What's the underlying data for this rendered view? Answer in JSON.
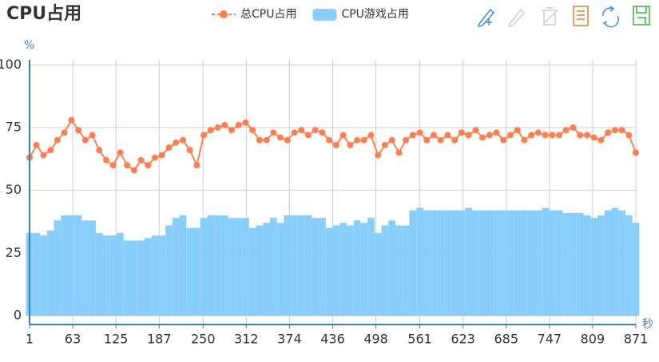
{
  "chart_data": {
    "type": "combo",
    "title": "CPU占用",
    "y_label": "%",
    "x_label": "秒",
    "x": [
      1,
      11,
      21,
      31,
      41,
      51,
      61,
      71,
      81,
      91,
      101,
      111,
      121,
      131,
      141,
      151,
      161,
      171,
      181,
      191,
      201,
      211,
      221,
      231,
      241,
      251,
      261,
      271,
      281,
      291,
      301,
      311,
      321,
      331,
      341,
      351,
      361,
      371,
      381,
      391,
      401,
      411,
      421,
      431,
      441,
      451,
      461,
      471,
      481,
      491,
      501,
      511,
      521,
      531,
      541,
      551,
      561,
      571,
      581,
      591,
      601,
      611,
      621,
      631,
      641,
      651,
      661,
      671,
      681,
      691,
      701,
      711,
      721,
      731,
      741,
      751,
      761,
      771,
      781,
      791,
      801,
      811,
      821,
      831,
      841,
      851,
      861,
      871
    ],
    "xlim": [
      1,
      871
    ],
    "xticks": [
      1,
      63,
      125,
      187,
      250,
      312,
      374,
      436,
      498,
      561,
      623,
      685,
      747,
      809,
      871
    ],
    "ylim": [
      -3.5,
      102
    ],
    "yticks": [
      0,
      25,
      50,
      75,
      100
    ],
    "grid": true,
    "legend": "top",
    "series": [
      {
        "name": "总CPU占用",
        "type": "line",
        "color": "#ff7f50",
        "values": [
          63,
          68,
          64,
          66,
          70,
          73,
          78,
          74,
          70,
          72,
          66,
          62,
          60,
          65,
          60,
          58,
          62,
          60,
          63,
          64,
          67,
          69,
          70,
          66,
          60,
          72,
          74,
          75,
          76,
          74,
          76,
          77,
          74,
          70,
          70,
          73,
          71,
          70,
          73,
          74,
          72,
          74,
          73,
          70,
          68,
          72,
          68,
          70,
          70,
          72,
          64,
          68,
          70,
          65,
          70,
          72,
          73,
          70,
          72,
          70,
          72,
          70,
          73,
          72,
          74,
          71,
          72,
          73,
          70,
          72,
          74,
          70,
          72,
          73,
          72,
          72,
          72,
          74,
          75,
          72,
          72,
          71,
          70,
          73,
          74,
          74,
          72,
          65
        ]
      },
      {
        "name": "CPU游戏占用",
        "type": "bar",
        "color": "#87cefa",
        "values": [
          33,
          33,
          32,
          34,
          38,
          40,
          40,
          40,
          38,
          38,
          33,
          32,
          32,
          33,
          30,
          30,
          30,
          31,
          32,
          32,
          36,
          39,
          40,
          35,
          35,
          39,
          40,
          40,
          40,
          39,
          39,
          39,
          35,
          36,
          37,
          39,
          37,
          40,
          40,
          40,
          40,
          39,
          39,
          35,
          36,
          37,
          36,
          38,
          37,
          39,
          33,
          36,
          38,
          36,
          36,
          42,
          43,
          42,
          42,
          42,
          42,
          42,
          42,
          43,
          42,
          42,
          42,
          42,
          42,
          42,
          42,
          42,
          42,
          42,
          43,
          42,
          42,
          41,
          41,
          41,
          40,
          39,
          40,
          42,
          43,
          42,
          40,
          37
        ]
      }
    ]
  }
}
